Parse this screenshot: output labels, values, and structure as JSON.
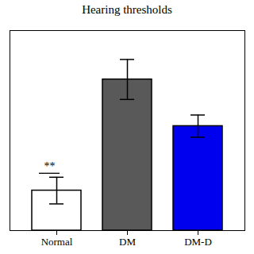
{
  "chart_data": {
    "type": "bar",
    "title": "Hearing thresholds",
    "categories": [
      "Normal",
      "DM",
      "DM-D"
    ],
    "values": [
      18,
      68,
      47
    ],
    "errors": [
      6,
      9,
      5
    ],
    "colors": [
      "#ffffff",
      "#595959",
      "#0000ee"
    ],
    "ylim": [
      0,
      90
    ],
    "yticks": [],
    "tick_labels": "x",
    "grid": false,
    "annotation": {
      "text": "**",
      "category": "Normal"
    }
  }
}
